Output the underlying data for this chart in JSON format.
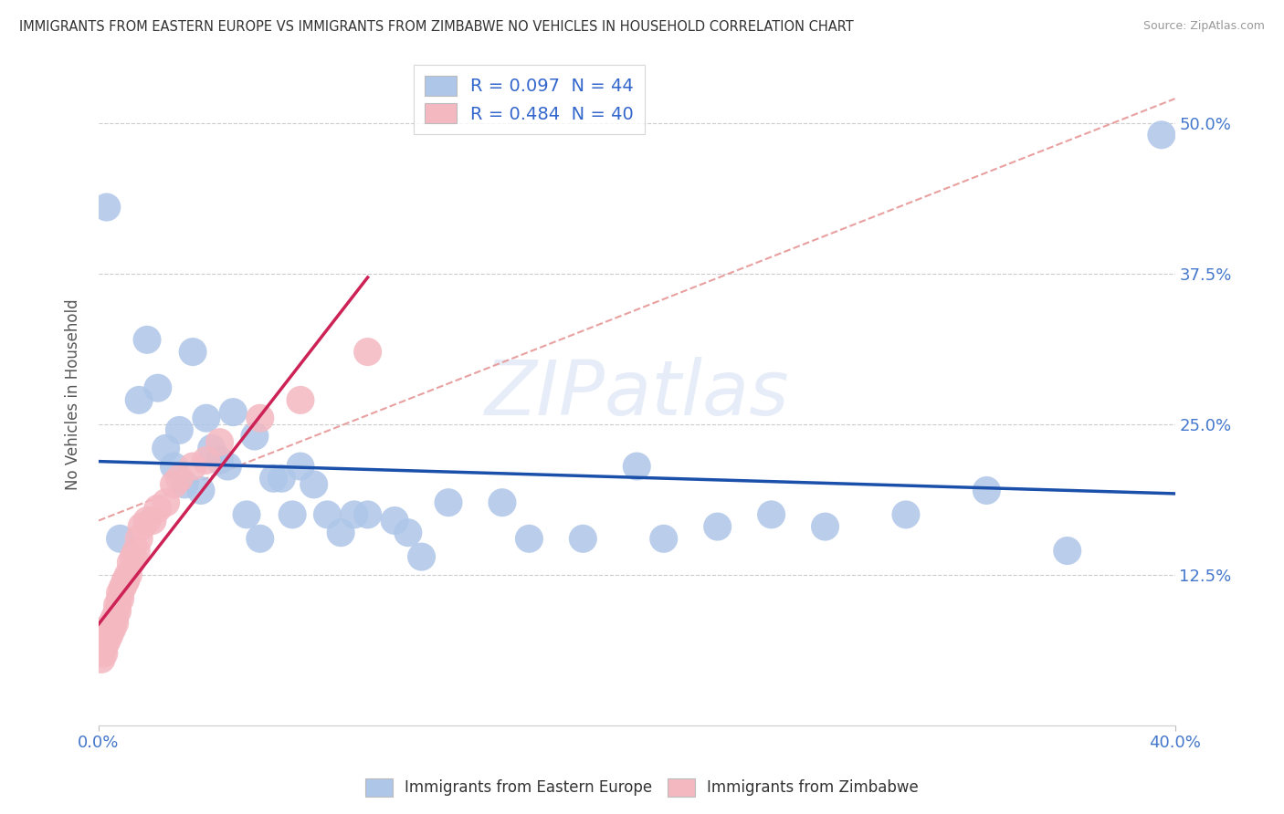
{
  "title": "IMMIGRANTS FROM EASTERN EUROPE VS IMMIGRANTS FROM ZIMBABWE NO VEHICLES IN HOUSEHOLD CORRELATION CHART",
  "source": "Source: ZipAtlas.com",
  "ylabel": "No Vehicles in Household",
  "legend_entries": [
    {
      "label": "R = 0.097  N = 44",
      "color": "#aec6e8"
    },
    {
      "label": "R = 0.484  N = 40",
      "color": "#f4b8c1"
    }
  ],
  "legend_bottom": [
    "Immigrants from Eastern Europe",
    "Immigrants from Zimbabwe"
  ],
  "eastern_europe_x": [
    0.003,
    0.008,
    0.015,
    0.018,
    0.022,
    0.025,
    0.028,
    0.03,
    0.032,
    0.035,
    0.038,
    0.04,
    0.042,
    0.045,
    0.048,
    0.05,
    0.055,
    0.058,
    0.06,
    0.065,
    0.068,
    0.072,
    0.075,
    0.08,
    0.085,
    0.09,
    0.095,
    0.1,
    0.11,
    0.115,
    0.12,
    0.13,
    0.15,
    0.16,
    0.18,
    0.2,
    0.21,
    0.23,
    0.25,
    0.27,
    0.3,
    0.33,
    0.36,
    0.395
  ],
  "eastern_europe_y": [
    0.43,
    0.155,
    0.27,
    0.32,
    0.28,
    0.23,
    0.215,
    0.245,
    0.2,
    0.31,
    0.195,
    0.255,
    0.23,
    0.22,
    0.215,
    0.26,
    0.175,
    0.24,
    0.155,
    0.205,
    0.205,
    0.175,
    0.215,
    0.2,
    0.175,
    0.16,
    0.175,
    0.175,
    0.17,
    0.16,
    0.14,
    0.185,
    0.185,
    0.155,
    0.155,
    0.215,
    0.155,
    0.165,
    0.175,
    0.165,
    0.175,
    0.195,
    0.145,
    0.49
  ],
  "zimbabwe_x": [
    0.001,
    0.001,
    0.001,
    0.002,
    0.002,
    0.002,
    0.003,
    0.003,
    0.003,
    0.004,
    0.004,
    0.005,
    0.005,
    0.006,
    0.006,
    0.007,
    0.007,
    0.008,
    0.008,
    0.009,
    0.01,
    0.01,
    0.011,
    0.012,
    0.013,
    0.014,
    0.015,
    0.016,
    0.018,
    0.02,
    0.022,
    0.025,
    0.028,
    0.03,
    0.035,
    0.04,
    0.045,
    0.06,
    0.075,
    0.1
  ],
  "zimbabwe_y": [
    0.055,
    0.06,
    0.065,
    0.06,
    0.065,
    0.07,
    0.07,
    0.075,
    0.08,
    0.075,
    0.08,
    0.085,
    0.08,
    0.085,
    0.09,
    0.095,
    0.1,
    0.105,
    0.11,
    0.115,
    0.12,
    0.12,
    0.125,
    0.135,
    0.14,
    0.145,
    0.155,
    0.165,
    0.17,
    0.17,
    0.18,
    0.185,
    0.2,
    0.205,
    0.215,
    0.22,
    0.235,
    0.255,
    0.27,
    0.31
  ],
  "dot_size": 500,
  "eastern_europe_color": "#aec6e8",
  "zimbabwe_color": "#f4b8c1",
  "eastern_europe_line_color": "#1a4faa",
  "zimbabwe_line_color": "#cc2255",
  "trend_dash_color": "#e8a0a0",
  "background_color": "#ffffff",
  "watermark": "ZIPatlas",
  "xlim": [
    0.0,
    0.4
  ],
  "ylim": [
    0.0,
    0.55
  ],
  "ytick_vals": [
    0.0,
    0.125,
    0.25,
    0.375,
    0.5
  ],
  "ytick_labels": [
    "",
    "12.5%",
    "25.0%",
    "37.5%",
    "50.0%"
  ]
}
